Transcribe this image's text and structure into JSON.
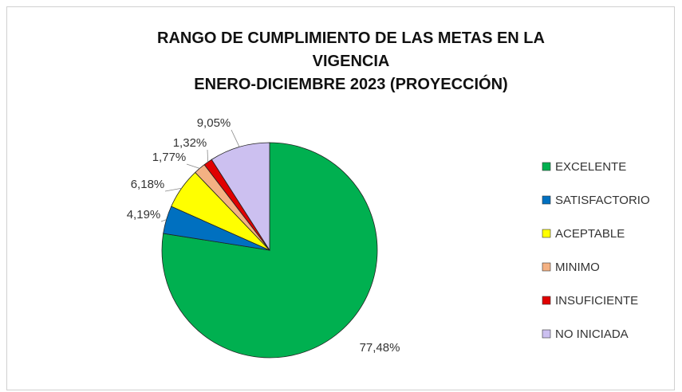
{
  "chart_data": {
    "type": "pie",
    "title": "RANGO DE CUMPLIMIENTO DE LAS METAS EN LA VIGENCIA",
    "subtitle": "ENERO-DICIEMBRE 2023 (PROYECCIÓN)",
    "categories": [
      "EXCELENTE",
      "SATISFACTORIO",
      "ACEPTABLE",
      "MINIMO",
      "INSUFICIENTE",
      "NO INICIADA"
    ],
    "values": [
      77.48,
      4.19,
      6.18,
      1.77,
      1.32,
      9.05
    ],
    "value_labels": [
      "77,48%",
      "4,19%",
      "6,18%",
      "1,77%",
      "1,32%",
      "9,05%"
    ],
    "colors": [
      "#00b050",
      "#0070c0",
      "#ffff00",
      "#f4b183",
      "#e00000",
      "#ccc0f0"
    ],
    "legend": "right"
  }
}
